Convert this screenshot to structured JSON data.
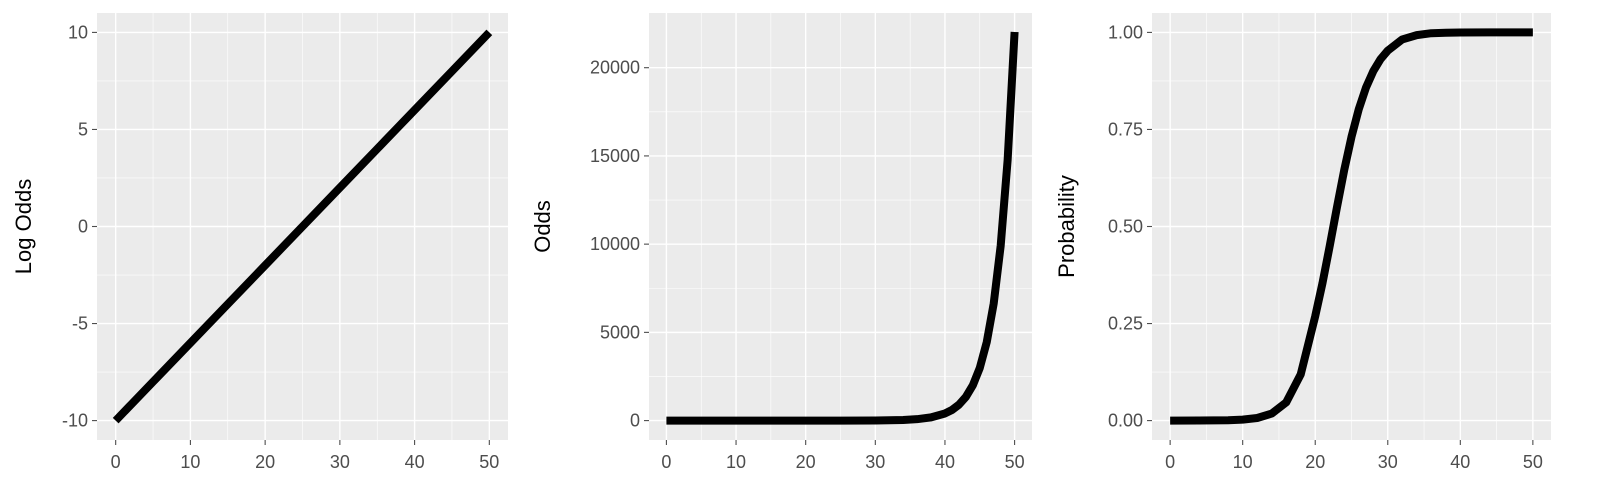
{
  "chart_data": [
    {
      "type": "line",
      "title": "",
      "xlabel": "",
      "ylabel": "Log Odds",
      "xlim": [
        -2.5,
        52.5
      ],
      "ylim": [
        -11,
        11
      ],
      "xticks": [
        0,
        10,
        20,
        30,
        40,
        50
      ],
      "xtick_labels": [
        "0",
        "10",
        "20",
        "30",
        "40",
        "50"
      ],
      "yticks": [
        -10,
        -5,
        0,
        5,
        10
      ],
      "ytick_labels": [
        "-10",
        "-5",
        "0",
        "5",
        "10"
      ],
      "grid": true,
      "series": [
        {
          "x": [
            0,
            5,
            10,
            15,
            20,
            25,
            30,
            35,
            40,
            45,
            50
          ],
          "values": [
            -10,
            -8,
            -6,
            -4,
            -2,
            0,
            2,
            4,
            6,
            8,
            10
          ]
        }
      ]
    },
    {
      "type": "line",
      "title": "",
      "xlabel": "",
      "ylabel": "Odds",
      "xlim": [
        -2.5,
        52.5
      ],
      "ylim": [
        -1100,
        23100
      ],
      "xticks": [
        0,
        10,
        20,
        30,
        40,
        50
      ],
      "xtick_labels": [
        "0",
        "10",
        "20",
        "30",
        "40",
        "50"
      ],
      "yticks": [
        0,
        5000,
        10000,
        15000,
        20000
      ],
      "ytick_labels": [
        "0",
        "5000",
        "10000",
        "15000",
        "20000"
      ],
      "grid": true,
      "series": [
        {
          "x": [
            0,
            5,
            10,
            15,
            20,
            25,
            30,
            32,
            34,
            36,
            38,
            40,
            41,
            42,
            43,
            44,
            45,
            46,
            47,
            48,
            49,
            50
          ],
          "values": [
            0,
            0,
            0,
            0.02,
            0.14,
            1,
            7,
            16,
            36,
            81,
            181,
            403,
            601,
            897,
            1339,
            1998,
            2981,
            4447,
            6634,
            9897,
            14765,
            22026
          ]
        }
      ]
    },
    {
      "type": "line",
      "title": "",
      "xlabel": "",
      "ylabel": "Probability",
      "xlim": [
        -2.5,
        52.5
      ],
      "ylim": [
        -0.05,
        1.05
      ],
      "xticks": [
        0,
        10,
        20,
        30,
        40,
        50
      ],
      "xtick_labels": [
        "0",
        "10",
        "20",
        "30",
        "40",
        "50"
      ],
      "yticks": [
        0,
        0.25,
        0.5,
        0.75,
        1
      ],
      "ytick_labels": [
        "0.00",
        "0.25",
        "0.50",
        "0.75",
        "1.00"
      ],
      "grid": true,
      "series": [
        {
          "x": [
            0,
            4,
            8,
            10,
            12,
            14,
            16,
            18,
            20,
            21,
            22,
            23,
            24,
            25,
            26,
            27,
            28,
            29,
            30,
            32,
            34,
            36,
            38,
            40,
            44,
            50
          ],
          "values": [
            0,
            0.0001,
            0.0009,
            0.0025,
            0.0067,
            0.018,
            0.047,
            0.119,
            0.269,
            0.354,
            0.45,
            0.55,
            0.646,
            0.731,
            0.802,
            0.858,
            0.9,
            0.931,
            0.953,
            0.982,
            0.993,
            0.998,
            0.9991,
            0.9997,
            1,
            1
          ]
        }
      ]
    }
  ]
}
